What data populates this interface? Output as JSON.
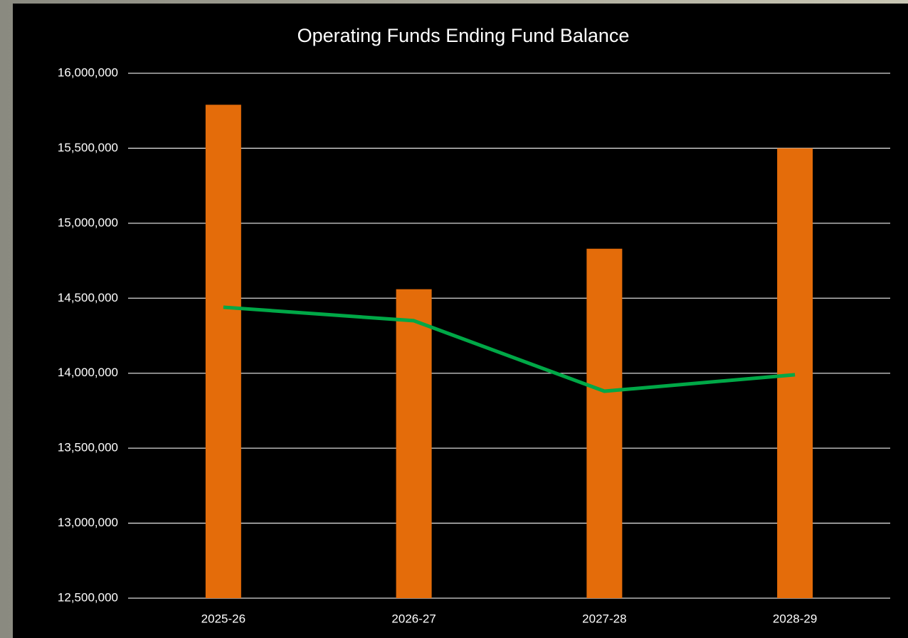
{
  "chart_data": {
    "type": "combo",
    "title": "Operating Funds Ending Fund Balance",
    "categories": [
      "2025-26",
      "2026-27",
      "2027-28",
      "2028-29"
    ],
    "series": [
      {
        "type": "bar",
        "color": "#e46c0a",
        "values": [
          15790000,
          14560000,
          14830000,
          15500000
        ]
      },
      {
        "type": "line",
        "color": "#00a847",
        "values": [
          14440000,
          14350000,
          13880000,
          13990000
        ]
      }
    ],
    "ylim": [
      12500000,
      16000000
    ],
    "yticks": [
      {
        "value": 12500000,
        "label": "12,500,000"
      },
      {
        "value": 13000000,
        "label": "13,000,000"
      },
      {
        "value": 13500000,
        "label": "13,500,000"
      },
      {
        "value": 14000000,
        "label": "14,000,000"
      },
      {
        "value": 14500000,
        "label": "14,500,000"
      },
      {
        "value": 15000000,
        "label": "15,000,000"
      },
      {
        "value": 15500000,
        "label": "15,500,000"
      },
      {
        "value": 16000000,
        "label": "16,000,000"
      }
    ],
    "grid": true
  }
}
